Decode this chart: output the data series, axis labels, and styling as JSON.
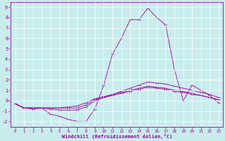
{
  "xlabel": "Windchill (Refroidissement éolien,°C)",
  "bg_color": "#c8ecec",
  "line_color": "#990099",
  "grid_color": "#ffffff",
  "xlim": [
    -0.5,
    23.5
  ],
  "ylim": [
    -2.5,
    9.5
  ],
  "yticks": [
    -2,
    -1,
    0,
    1,
    2,
    3,
    4,
    5,
    6,
    7,
    8,
    9
  ],
  "xticks": [
    0,
    1,
    2,
    3,
    4,
    5,
    6,
    7,
    8,
    9,
    10,
    11,
    12,
    13,
    14,
    15,
    16,
    17,
    18,
    19,
    20,
    21,
    22,
    23
  ],
  "lines": [
    {
      "x": [
        0,
        1,
        2,
        3,
        4,
        5,
        6,
        7,
        8,
        9,
        10,
        11,
        12,
        13,
        14,
        15,
        16,
        17,
        18,
        19,
        20,
        21,
        22,
        23
      ],
      "y": [
        -0.3,
        -0.7,
        -0.8,
        -0.7,
        -1.3,
        -1.5,
        -1.8,
        -2.0,
        -2.0,
        -0.8,
        1.5,
        4.5,
        6.0,
        7.8,
        7.8,
        8.9,
        8.0,
        7.3,
        3.0,
        0.0,
        1.5,
        1.0,
        0.5,
        -0.2
      ]
    },
    {
      "x": [
        0,
        1,
        2,
        3,
        4,
        5,
        6,
        7,
        8,
        9,
        10,
        11,
        12,
        13,
        14,
        15,
        16,
        17,
        18,
        19,
        20,
        21,
        22,
        23
      ],
      "y": [
        -0.3,
        -0.7,
        -0.7,
        -0.7,
        -0.8,
        -0.9,
        -0.9,
        -0.9,
        -0.6,
        0.0,
        0.3,
        0.6,
        0.9,
        1.2,
        1.5,
        1.8,
        1.7,
        1.6,
        1.4,
        1.2,
        1.0,
        0.8,
        0.6,
        0.3
      ]
    },
    {
      "x": [
        0,
        1,
        2,
        3,
        4,
        5,
        6,
        7,
        8,
        9,
        10,
        11,
        12,
        13,
        14,
        15,
        16,
        17,
        18,
        19,
        20,
        21,
        22,
        23
      ],
      "y": [
        -0.3,
        -0.7,
        -0.7,
        -0.7,
        -0.7,
        -0.7,
        -0.7,
        -0.7,
        -0.4,
        0.1,
        0.3,
        0.5,
        0.7,
        0.9,
        1.1,
        1.3,
        1.2,
        1.1,
        0.9,
        0.8,
        0.6,
        0.5,
        0.3,
        0.1
      ]
    },
    {
      "x": [
        0,
        1,
        2,
        3,
        4,
        5,
        6,
        7,
        8,
        9,
        10,
        11,
        12,
        13,
        14,
        15,
        16,
        17,
        18,
        19,
        20,
        21,
        22,
        23
      ],
      "y": [
        -0.3,
        -0.7,
        -0.7,
        -0.7,
        -0.7,
        -0.7,
        -0.6,
        -0.5,
        -0.2,
        0.2,
        0.4,
        0.6,
        0.8,
        1.0,
        1.2,
        1.4,
        1.3,
        1.2,
        1.0,
        0.9,
        0.7,
        0.5,
        0.3,
        0.1
      ]
    }
  ]
}
